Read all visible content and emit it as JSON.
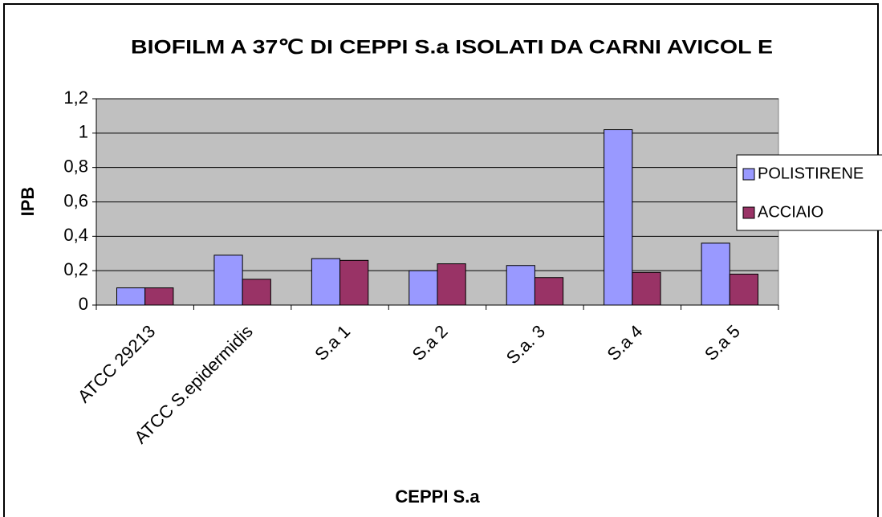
{
  "chart_data": {
    "type": "bar",
    "title": "BIOFILM A 37℃ DI CEPPI S.a ISOLATI DA CARNI AVICOL E",
    "x_label": "CEPPI S.a",
    "y_label": "IPB",
    "categories": [
      "ATCC 29213",
      "ATCC S.epidermidis",
      "S.a 1",
      "S.a 2",
      "S.a. 3",
      "S.a 4",
      "S.a 5"
    ],
    "series": [
      {
        "name": "POLISTIRENE",
        "color": "#9999ff",
        "values": [
          0.1,
          0.29,
          0.27,
          0.2,
          0.23,
          1.02,
          0.36
        ]
      },
      {
        "name": "ACCIAIO",
        "color": "#993366",
        "values": [
          0.1,
          0.15,
          0.26,
          0.24,
          0.16,
          0.19,
          0.18
        ]
      }
    ],
    "ylim": [
      0,
      1.2
    ],
    "yticks": [
      0,
      {
        "value": 0.2,
        "label": "0,2"
      },
      {
        "value": 0.4,
        "label": "0,4"
      },
      {
        "value": 0.6,
        "label": "0,6"
      },
      {
        "value": 0.8,
        "label": "0,8"
      },
      1,
      {
        "value": 1.2,
        "label": "1,2"
      }
    ],
    "grid": true,
    "legend": "right"
  }
}
